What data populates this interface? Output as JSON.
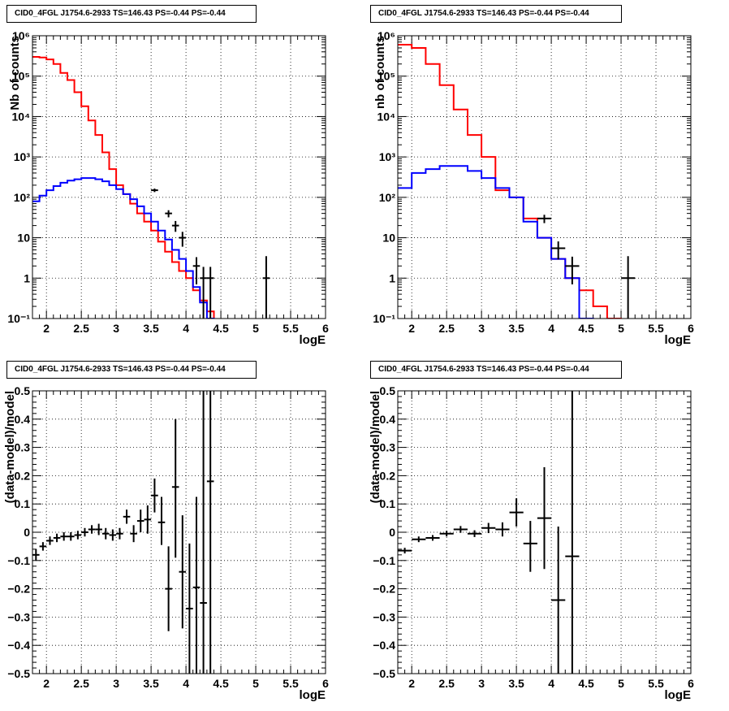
{
  "chart_data": [
    {
      "id": "top-left",
      "type": "line",
      "title": "CID0_4FGL J1754.6-2933 TS=146.43 PS=-0.44 PS=-0.44",
      "xlabel": "logE",
      "ylabel": "Nb of counts",
      "xlim": [
        1.8,
        6
      ],
      "ylim": [
        0.1,
        1000000
      ],
      "yscale": "log",
      "xticks": [
        "2",
        "2.5",
        "3",
        "3.5",
        "4",
        "4.5",
        "5",
        "5.5",
        "6"
      ],
      "yticks": [
        "10⁻¹",
        "1",
        "10",
        "10²",
        "10³",
        "10⁴",
        "10⁵",
        "10⁶"
      ],
      "grid": true,
      "series": [
        {
          "style": "step",
          "color": "#ff0000",
          "edges": [
            1.8,
            1.9,
            2.0,
            2.1,
            2.2,
            2.3,
            2.4,
            2.5,
            2.6,
            2.7,
            2.8,
            2.9,
            3.0,
            3.1,
            3.2,
            3.3,
            3.4,
            3.5,
            3.6,
            3.7,
            3.8,
            3.9,
            4.0,
            4.1,
            4.2,
            4.3,
            4.4,
            4.5,
            4.6,
            4.7,
            4.8,
            4.9,
            5.0,
            5.1,
            5.2,
            5.3,
            5.4,
            5.5,
            5.6,
            5.7,
            5.8,
            5.9,
            6.0
          ],
          "values": [
            300000,
            290000,
            260000,
            200000,
            120000,
            80000,
            40000,
            18000,
            8000,
            3500,
            1300,
            500,
            200,
            120,
            70,
            40,
            25,
            15,
            8,
            4.5,
            2.5,
            1.5,
            1,
            0.5,
            0.28,
            0.15,
            0.09,
            0.09,
            0.09,
            0.09,
            0.09,
            0.09,
            0.09,
            0.09,
            0.09,
            0.09,
            0.09,
            0.09,
            0.09,
            0.09,
            0.09,
            0.09
          ]
        },
        {
          "style": "step",
          "color": "#0000ff",
          "edges": [
            1.8,
            1.9,
            2.0,
            2.1,
            2.2,
            2.3,
            2.4,
            2.5,
            2.6,
            2.7,
            2.8,
            2.9,
            3.0,
            3.1,
            3.2,
            3.3,
            3.4,
            3.5,
            3.6,
            3.7,
            3.8,
            3.9,
            4.0,
            4.1,
            4.2,
            4.3,
            4.4,
            4.5,
            4.6,
            4.7,
            4.8,
            4.9,
            5.0,
            5.1,
            5.2,
            5.3,
            5.4,
            5.5,
            5.6,
            5.7,
            5.8,
            5.9,
            6.0
          ],
          "values": [
            80,
            110,
            150,
            190,
            230,
            260,
            280,
            300,
            300,
            280,
            250,
            200,
            160,
            120,
            90,
            60,
            40,
            25,
            15,
            9,
            5,
            3,
            1.5,
            0.6,
            0.25,
            0.1,
            0.09,
            0.09,
            0.09,
            0.09,
            0.09,
            0.09,
            0.09,
            0.09,
            0.09,
            0.09,
            0.09,
            0.09,
            0.09,
            0.09,
            0.09,
            0.09
          ]
        },
        {
          "style": "errorbar",
          "color": "#000000",
          "points": [
            [
              3.55,
              150,
              0.05,
              15,
              15
            ],
            [
              3.75,
              40,
              0.05,
              8,
              8
            ],
            [
              3.85,
              20,
              0.05,
              6,
              6
            ],
            [
              3.95,
              10,
              0.05,
              4,
              4
            ],
            [
              4.15,
              2,
              0.05,
              1.3,
              1.3
            ],
            [
              4.25,
              1,
              0.05,
              0.9,
              0.9
            ],
            [
              4.35,
              1,
              0.05,
              0.9,
              0.9
            ],
            [
              5.15,
              1,
              0.05,
              0.9,
              2.5
            ]
          ]
        }
      ]
    },
    {
      "id": "top-right",
      "type": "line",
      "title": "CID0_4FGL J1754.6-2933 TS=146.43 PS=-0.44 PS=-0.44",
      "xlabel": "logE",
      "ylabel": "nb of counts",
      "xlim": [
        1.8,
        6
      ],
      "ylim": [
        0.1,
        1000000
      ],
      "yscale": "log",
      "xticks": [
        "2",
        "2.5",
        "3",
        "3.5",
        "4",
        "4.5",
        "5",
        "5.5",
        "6"
      ],
      "yticks": [
        "10⁻¹",
        "1",
        "10",
        "10²",
        "10³",
        "10⁴",
        "10⁵",
        "10⁶"
      ],
      "grid": true,
      "series": [
        {
          "style": "step",
          "color": "#ff0000",
          "edges": [
            1.8,
            2.0,
            2.2,
            2.4,
            2.6,
            2.8,
            3.0,
            3.2,
            3.4,
            3.6,
            3.8,
            4.0,
            4.2,
            4.4,
            4.6,
            4.8,
            5.0,
            5.2,
            5.4,
            5.6,
            5.8,
            6.0
          ],
          "values": [
            600000,
            500000,
            200000,
            60000,
            15000,
            3500,
            1000,
            150,
            100,
            30,
            10,
            3,
            1,
            0.5,
            0.2,
            0.1,
            0.09,
            0.09,
            0.09,
            0.09,
            0.09
          ]
        },
        {
          "style": "step",
          "color": "#0000ff",
          "edges": [
            1.8,
            2.0,
            2.2,
            2.4,
            2.6,
            2.8,
            3.0,
            3.2,
            3.4,
            3.6,
            3.8,
            4.0,
            4.2,
            4.4,
            4.6,
            4.8,
            5.0,
            5.2,
            5.4,
            5.6,
            5.8,
            6.0
          ],
          "values": [
            170,
            400,
            500,
            600,
            600,
            450,
            300,
            170,
            100,
            25,
            10,
            3,
            1,
            0.1,
            0.09,
            0.09,
            0.09,
            0.09,
            0.09,
            0.09,
            0.09
          ]
        },
        {
          "style": "errorbar",
          "color": "#000000",
          "points": [
            [
              3.9,
              30,
              0.1,
              7,
              7
            ],
            [
              4.1,
              5.5,
              0.1,
              2.6,
              2.6
            ],
            [
              4.3,
              2,
              0.1,
              1.3,
              1.4
            ],
            [
              5.1,
              1,
              0.1,
              0.9,
              2.5
            ]
          ]
        }
      ]
    },
    {
      "id": "bottom-left",
      "type": "scatter",
      "title": "CID0_4FGL J1754.6-2933 TS=146.43 PS=-0.44 PS=-0.44",
      "xlabel": "logE",
      "ylabel": "(data-model)/model",
      "xlim": [
        1.8,
        6
      ],
      "ylim": [
        -0.5,
        0.5
      ],
      "yscale": "linear",
      "xticks": [
        "2",
        "2.5",
        "3",
        "3.5",
        "4",
        "4.5",
        "5",
        "5.5",
        "6"
      ],
      "yticks": [
        "−0.5",
        "−0.4",
        "−0.3",
        "−0.2",
        "−0.1",
        "0",
        "0.1",
        "0.2",
        "0.3",
        "0.4",
        "0.5"
      ],
      "grid": true,
      "series": [
        {
          "style": "errorbar",
          "color": "#000000",
          "points": [
            [
              1.85,
              -0.08,
              0.05,
              0.02,
              0.02
            ],
            [
              1.95,
              -0.05,
              0.05,
              0.015,
              0.015
            ],
            [
              2.05,
              -0.03,
              0.05,
              0.015,
              0.015
            ],
            [
              2.15,
              -0.02,
              0.05,
              0.015,
              0.015
            ],
            [
              2.25,
              -0.015,
              0.05,
              0.015,
              0.015
            ],
            [
              2.35,
              -0.015,
              0.05,
              0.015,
              0.015
            ],
            [
              2.45,
              -0.01,
              0.05,
              0.015,
              0.015
            ],
            [
              2.55,
              0.0,
              0.05,
              0.015,
              0.015
            ],
            [
              2.65,
              0.01,
              0.05,
              0.015,
              0.015
            ],
            [
              2.75,
              0.01,
              0.05,
              0.02,
              0.02
            ],
            [
              2.85,
              -0.005,
              0.05,
              0.02,
              0.02
            ],
            [
              2.95,
              -0.01,
              0.05,
              0.02,
              0.02
            ],
            [
              3.05,
              -0.005,
              0.05,
              0.02,
              0.02
            ],
            [
              3.15,
              0.055,
              0.05,
              0.025,
              0.025
            ],
            [
              3.25,
              -0.005,
              0.05,
              0.03,
              0.03
            ],
            [
              3.35,
              0.04,
              0.05,
              0.04,
              0.04
            ],
            [
              3.45,
              0.045,
              0.05,
              0.05,
              0.05
            ],
            [
              3.55,
              0.13,
              0.05,
              0.06,
              0.06
            ],
            [
              3.65,
              0.035,
              0.05,
              0.08,
              0.09
            ],
            [
              3.75,
              -0.2,
              0.05,
              0.15,
              0.15
            ],
            [
              3.85,
              0.16,
              0.05,
              0.25,
              0.24
            ],
            [
              3.95,
              -0.14,
              0.05,
              0.2,
              0.2
            ],
            [
              4.05,
              -0.27,
              0.05,
              0.25,
              0.23
            ],
            [
              4.15,
              -0.195,
              0.05,
              0.32,
              0.32
            ],
            [
              4.25,
              -0.25,
              0.05,
              0.27,
              0.8
            ],
            [
              4.35,
              0.18,
              0.05,
              0.7,
              0.6
            ]
          ]
        }
      ]
    },
    {
      "id": "bottom-right",
      "type": "scatter",
      "title": "CID0_4FGL J1754.6-2933 TS=146.43 PS=-0.44 PS=-0.44",
      "xlabel": "logE",
      "ylabel": "(data-model)/model",
      "xlim": [
        1.8,
        6
      ],
      "ylim": [
        -0.5,
        0.5
      ],
      "yscale": "linear",
      "xticks": [
        "2",
        "2.5",
        "3",
        "3.5",
        "4",
        "4.5",
        "5",
        "5.5",
        "6"
      ],
      "yticks": [
        "−0.5",
        "−0.4",
        "−0.3",
        "−0.2",
        "−0.1",
        "0",
        "0.1",
        "0.2",
        "0.3",
        "0.4",
        "0.5"
      ],
      "grid": true,
      "series": [
        {
          "style": "errorbar",
          "color": "#000000",
          "points": [
            [
              1.9,
              -0.065,
              0.1,
              0.01,
              0.01
            ],
            [
              2.1,
              -0.025,
              0.1,
              0.01,
              0.01
            ],
            [
              2.3,
              -0.02,
              0.1,
              0.01,
              0.01
            ],
            [
              2.5,
              -0.005,
              0.1,
              0.01,
              0.01
            ],
            [
              2.7,
              0.01,
              0.1,
              0.012,
              0.012
            ],
            [
              2.9,
              -0.005,
              0.1,
              0.012,
              0.012
            ],
            [
              3.1,
              0.015,
              0.1,
              0.018,
              0.018
            ],
            [
              3.3,
              0.01,
              0.1,
              0.025,
              0.025
            ],
            [
              3.5,
              0.07,
              0.1,
              0.05,
              0.05
            ],
            [
              3.7,
              -0.04,
              0.1,
              0.1,
              0.08
            ],
            [
              3.9,
              0.05,
              0.1,
              0.18,
              0.18
            ],
            [
              4.1,
              -0.24,
              0.1,
              0.26,
              0.26
            ],
            [
              4.3,
              -0.085,
              0.1,
              0.415,
              0.6
            ]
          ]
        }
      ]
    }
  ]
}
